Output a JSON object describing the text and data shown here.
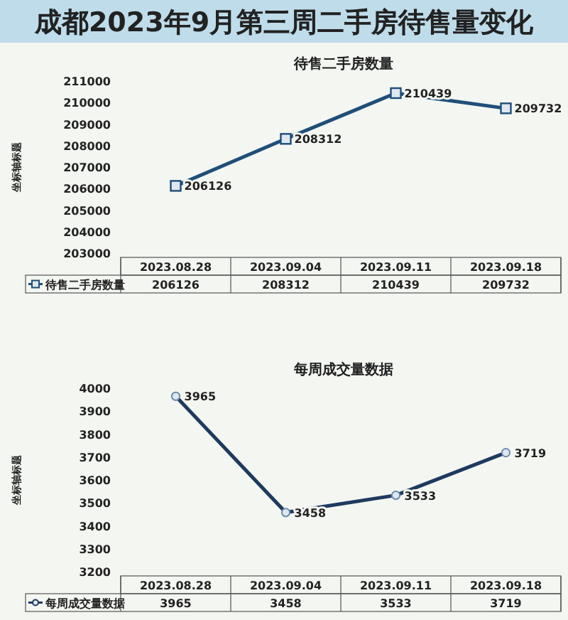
{
  "chart_data": [
    {
      "type": "line",
      "title": "成都2023年9月第三周二手房待售量变化",
      "subtitle": "待售二手房数量",
      "ylabel": "坐标轴标题",
      "categories": [
        "2023.08.28",
        "2023.09.04",
        "2023.09.11",
        "2023.09.18"
      ],
      "series": [
        {
          "name": "待售二手房数量",
          "color": "#1f4e79",
          "values": [
            206126,
            208312,
            210439,
            209732
          ]
        }
      ],
      "annotations": [
        {
          "text": "206126",
          "x": "2023.08.28",
          "y": 206126
        },
        {
          "text": "208312",
          "x": "2023.09.04",
          "y": 208312
        },
        {
          "text": "210439",
          "x": "2023.09.11",
          "y": 210439
        },
        {
          "text": "209732",
          "x": "2023.09.18",
          "y": 209732
        }
      ],
      "ylim": [
        203000,
        211000
      ],
      "yticks": [
        203000,
        204000,
        205000,
        206000,
        207000,
        208000,
        209000,
        210000,
        211000
      ],
      "marker": "square",
      "data_labels": true,
      "grid": false,
      "legend": "bottom"
    },
    {
      "type": "line",
      "title": "每周成交量数据",
      "ylabel": "坐标轴标题",
      "categories": [
        "2023.08.28",
        "2023.09.04",
        "2023.09.11",
        "2023.09.18"
      ],
      "series": [
        {
          "name": "每周成交量数据",
          "color": "#1f3a5f",
          "values": [
            3965,
            3458,
            3533,
            3719
          ]
        }
      ],
      "annotations": [
        {
          "text": "3965",
          "x": "2023.08.28",
          "y": 3965
        },
        {
          "text": "3458",
          "x": "2023.09.04",
          "y": 3458
        },
        {
          "text": "3533",
          "x": "2023.09.11",
          "y": 3533
        },
        {
          "text": "3719",
          "x": "2023.09.18",
          "y": 3719
        }
      ],
      "ylim": [
        3200,
        4000
      ],
      "yticks": [
        3200,
        3300,
        3400,
        3500,
        3600,
        3700,
        3800,
        3900,
        4000
      ],
      "marker": "circle",
      "data_labels": true,
      "grid": false,
      "legend": "bottom"
    }
  ]
}
